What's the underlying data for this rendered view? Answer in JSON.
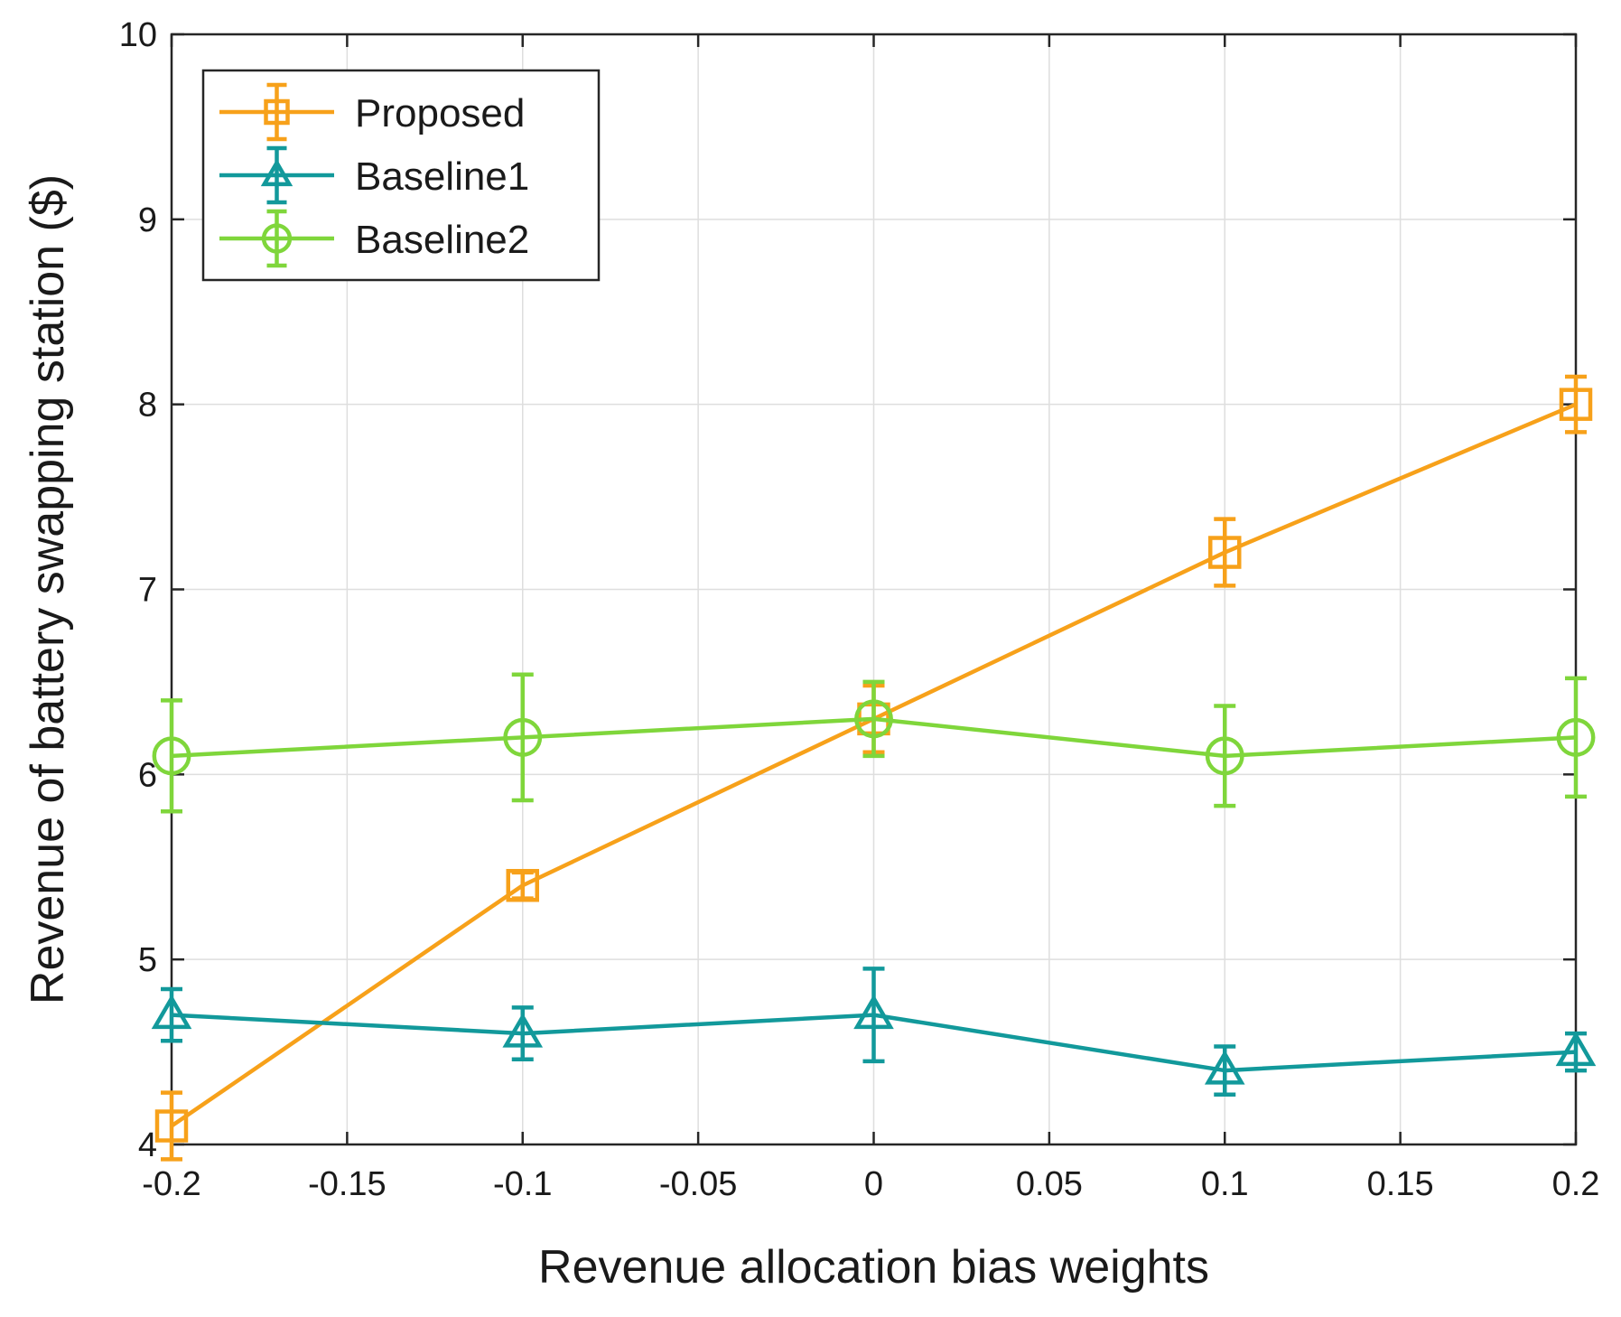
{
  "chart_data": {
    "type": "line",
    "title": "",
    "xlabel": "Revenue allocation bias weights",
    "ylabel": "Revenue of battery swapping station ($)",
    "xlim": [
      -0.2,
      0.2
    ],
    "ylim": [
      4,
      10
    ],
    "grid": true,
    "legend_position": "top-left",
    "x_ticks": [
      -0.2,
      -0.15,
      -0.1,
      -0.05,
      0,
      0.05,
      0.1,
      0.15,
      0.2
    ],
    "x_tick_labels": [
      "-0.2",
      "-0.15",
      "-0.1",
      "-0.05",
      "0",
      "0.05",
      "0.1",
      "0.15",
      "0.2"
    ],
    "y_ticks": [
      4,
      5,
      6,
      7,
      8,
      9,
      10
    ],
    "y_tick_labels": [
      "4",
      "5",
      "6",
      "7",
      "8",
      "9",
      "10"
    ],
    "x": [
      -0.2,
      -0.1,
      0,
      0.1,
      0.2
    ],
    "series": [
      {
        "name": "Proposed",
        "color": "#f7a11a",
        "marker": "square",
        "values": [
          4.1,
          5.4,
          6.3,
          7.2,
          8.0
        ],
        "errors": [
          0.18,
          0.07,
          0.18,
          0.18,
          0.15
        ]
      },
      {
        "name": "Baseline1",
        "color": "#12999b",
        "marker": "triangle",
        "values": [
          4.7,
          4.6,
          4.7,
          4.4,
          4.5
        ],
        "errors": [
          0.14,
          0.14,
          0.25,
          0.13,
          0.1
        ]
      },
      {
        "name": "Baseline2",
        "color": "#7fd63b",
        "marker": "circle",
        "values": [
          6.1,
          6.2,
          6.3,
          6.1,
          6.2
        ],
        "errors": [
          0.3,
          0.34,
          0.2,
          0.27,
          0.32
        ]
      }
    ]
  }
}
